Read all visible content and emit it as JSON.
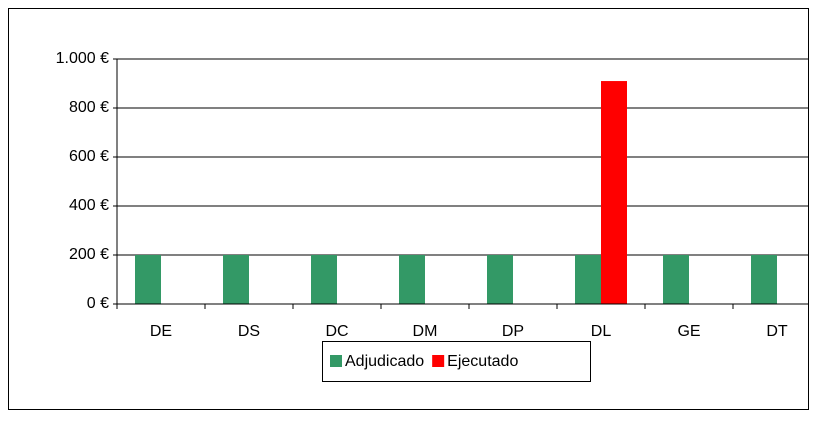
{
  "chart_data": {
    "type": "bar",
    "categories": [
      "DE",
      "DS",
      "DC",
      "DM",
      "DP",
      "DL",
      "GE",
      "DT"
    ],
    "series": [
      {
        "name": "Adjudicado",
        "color": "#339966",
        "values": [
          200,
          200,
          200,
          200,
          200,
          200,
          200,
          200
        ]
      },
      {
        "name": "Ejecutado",
        "color": "#ff0000",
        "values": [
          0,
          0,
          0,
          0,
          0,
          910,
          0,
          0
        ]
      }
    ],
    "ylim": [
      0,
      1000
    ],
    "yticks": [
      {
        "value": 0,
        "label": "0 €"
      },
      {
        "value": 200,
        "label": "200 €"
      },
      {
        "value": 400,
        "label": "400 €"
      },
      {
        "value": 600,
        "label": "600 €"
      },
      {
        "value": 800,
        "label": "800 €"
      },
      {
        "value": 1000,
        "label": "1.000 €"
      }
    ],
    "grid": true,
    "legend": "bottom"
  }
}
